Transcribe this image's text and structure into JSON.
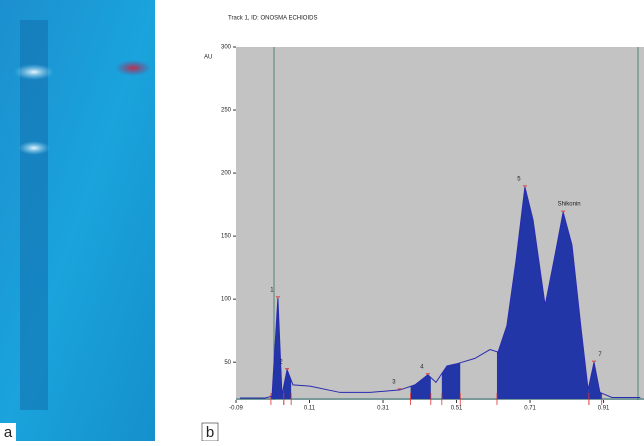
{
  "panel_labels": [
    "a",
    "b"
  ],
  "chart_data": {
    "type": "line",
    "title": "Track 1, ID: ONOSMA ECHIOIDS",
    "y_label": "AU",
    "x": [
      -0.079,
      -0.011,
      0.008,
      0.024,
      0.035,
      0.049,
      0.065,
      0.111,
      0.193,
      0.275,
      0.356,
      0.397,
      0.432,
      0.454,
      0.484,
      0.514,
      0.56,
      0.601,
      0.623,
      0.647,
      0.672,
      0.696,
      0.718,
      0.751,
      0.778,
      0.8,
      0.824,
      0.849,
      0.868,
      0.884,
      0.9,
      0.933,
      1.01
    ],
    "series": [
      {
        "color": "#2a2ab0",
        "values": [
          21.6,
          21.6,
          23,
          101,
          24,
          44,
          32,
          31,
          26,
          26,
          28,
          32,
          40,
          34,
          47,
          49,
          53,
          60,
          58,
          79,
          131,
          189,
          163,
          95,
          135,
          169,
          143,
          76,
          28,
          50,
          26,
          22,
          22
        ]
      }
    ],
    "annotations": [
      "1",
      "2",
      "3",
      "4",
      "5",
      "Shikonin",
      "7"
    ],
    "xlim": [
      -0.09,
      1.02
    ],
    "ylim": [
      20,
      300
    ],
    "xticks": [
      -0.09,
      0.11,
      0.31,
      0.51,
      0.71,
      0.91
    ],
    "yticks": [
      50,
      100,
      150,
      200,
      250,
      300
    ]
  }
}
